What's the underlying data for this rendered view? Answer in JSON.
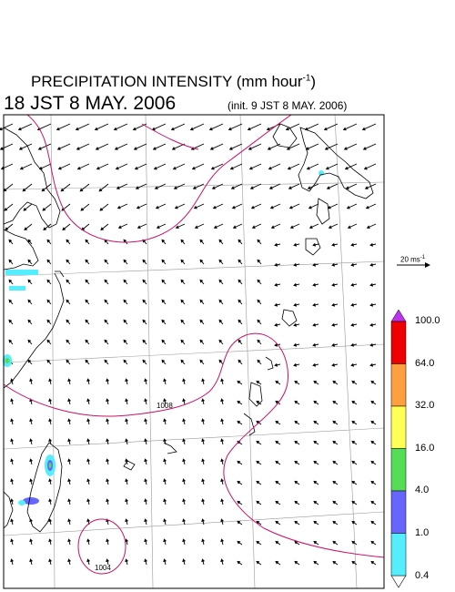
{
  "header": {
    "title": "PRECIPITATION INTENSITY (mm hour",
    "title_exponent": "-1",
    "title_suffix": ")",
    "valid_time": "18 JST 8 MAY. 2006",
    "init_time": "(init. 9 JST 8 MAY. 2006)"
  },
  "wind_reference": {
    "label": "20 ms",
    "exponent": "-1"
  },
  "contours": {
    "label_1008": "1008",
    "label_1004": "1004"
  },
  "colorbar": {
    "labels": [
      "100.0",
      "64.0",
      "32.0",
      "16.0",
      "4.0",
      "1.0",
      "0.4"
    ],
    "colors": [
      "#ee0000",
      "#ffa040",
      "#ffff55",
      "#55dd55",
      "#6666ff",
      "#55eeff"
    ],
    "top_arrow_color": "#bb33ee"
  },
  "colors": {
    "coast": "#000000",
    "isobar": "#cc1166",
    "grid": "#999999",
    "frame": "#000000"
  }
}
